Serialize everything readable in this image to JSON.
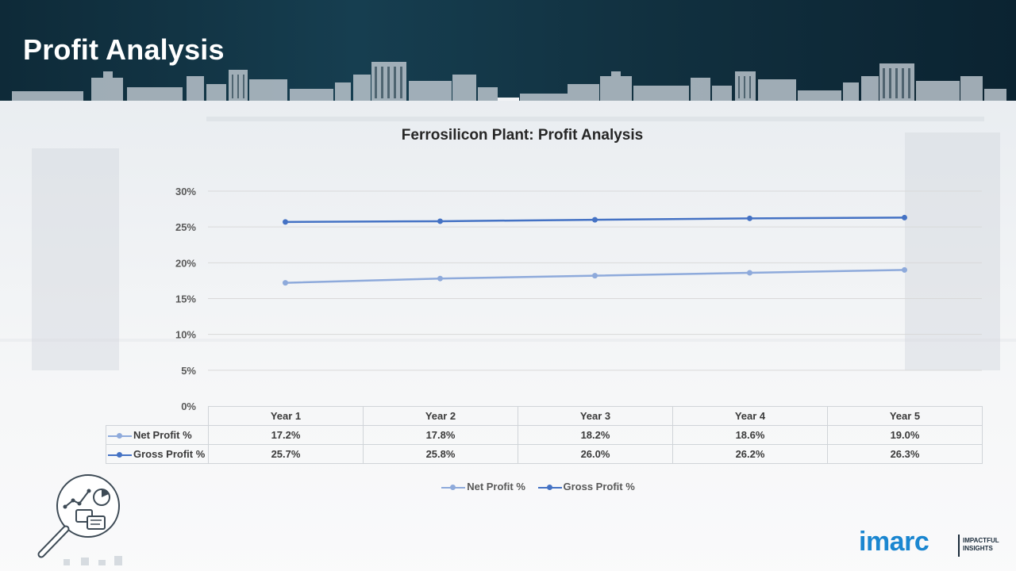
{
  "header": {
    "title": "Profit Analysis"
  },
  "chart_data": {
    "type": "line",
    "title": "Ferrosilicon Plant: Profit Analysis",
    "categories": [
      "Year 1",
      "Year 2",
      "Year 3",
      "Year 4",
      "Year 5"
    ],
    "series": [
      {
        "name": "Net Profit %",
        "values": [
          17.2,
          17.8,
          18.2,
          18.6,
          19.0
        ],
        "labels": [
          "17.2%",
          "17.8%",
          "18.2%",
          "18.6%",
          "19.0%"
        ],
        "color": "#8eaadb"
      },
      {
        "name": "Gross Profit %",
        "values": [
          25.7,
          25.8,
          26.0,
          26.2,
          26.3
        ],
        "labels": [
          "25.7%",
          "25.8%",
          "26.0%",
          "26.2%",
          "26.3%"
        ],
        "color": "#4472c4"
      }
    ],
    "yticks": [
      "0%",
      "5%",
      "10%",
      "15%",
      "20%",
      "25%",
      "30%"
    ],
    "ylim": [
      0,
      30
    ],
    "grid": true,
    "legend": "bottom",
    "data_table": true
  },
  "logo": {
    "word": "imarc",
    "tagline_1": "IMPACTFUL",
    "tagline_2": "INSIGHTS",
    "icon": "imarc-logo"
  },
  "decor": {
    "magnifier_icon": "magnifier-analytics-icon"
  }
}
